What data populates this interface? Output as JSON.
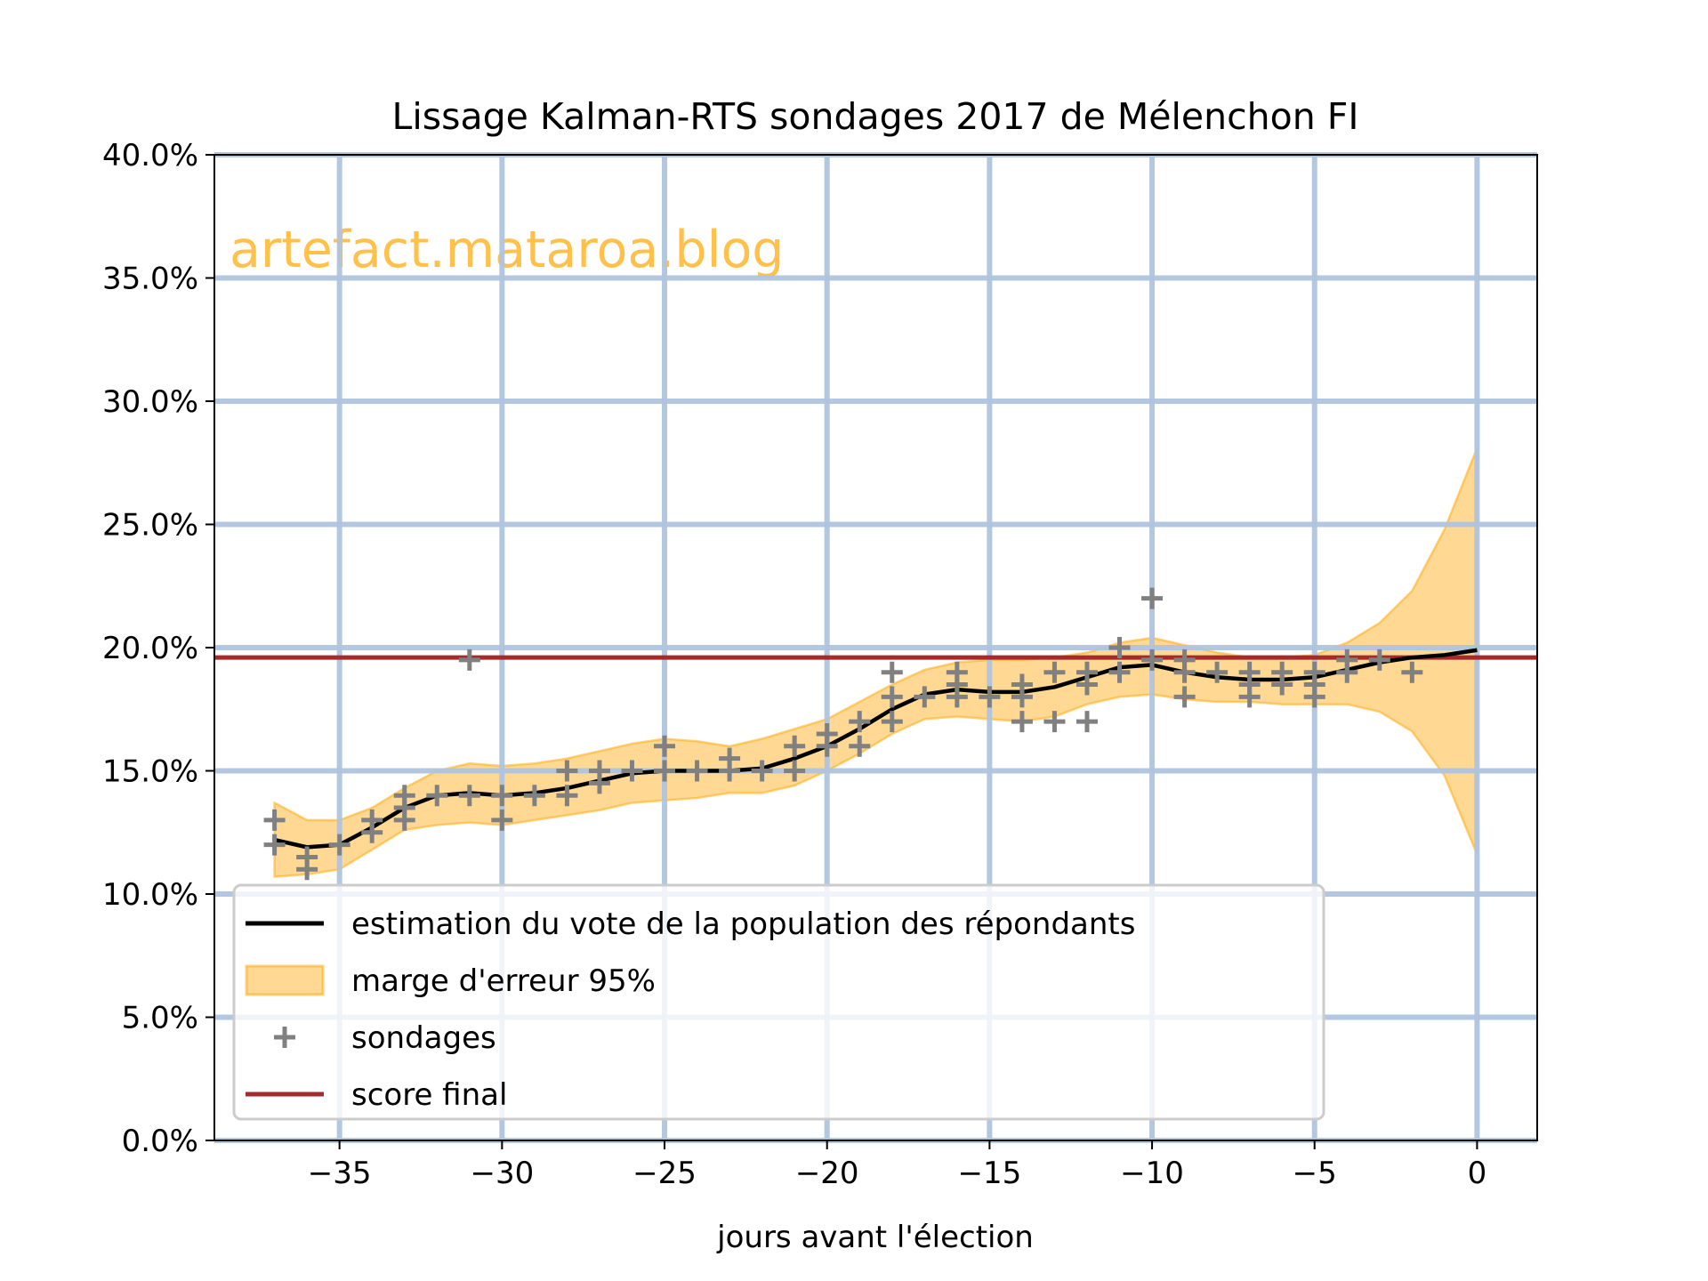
{
  "chart_data": {
    "type": "line",
    "title": "Lissage Kalman-RTS sondages 2017 de Mélenchon FI",
    "xlabel": "jours avant l'élection",
    "ylabel": "",
    "watermark": "artefact.mataroa.blog",
    "xlim": [
      -38.85,
      1.85
    ],
    "ylim": [
      0,
      40
    ],
    "grid": true,
    "legend_placement": "lower-left",
    "x_ticks": [
      -35,
      -30,
      -25,
      -20,
      -15,
      -10,
      -5,
      0
    ],
    "x_tick_labels": [
      "−35",
      "−30",
      "−25",
      "−20",
      "−15",
      "−10",
      "−5",
      "0"
    ],
    "y_ticks": [
      0,
      5,
      10,
      15,
      20,
      25,
      30,
      35,
      40
    ],
    "y_tick_labels": [
      "0.0%",
      "5.0%",
      "10.0%",
      "15.0%",
      "20.0%",
      "25.0%",
      "30.0%",
      "35.0%",
      "40.0%"
    ],
    "colors": {
      "estimate": "#000000",
      "band_fill": "#ffa500",
      "band_edge": "#ffa500",
      "polls": "#808080",
      "final": "#a52a2a",
      "grid": "#b0c4de",
      "watermark": "#ffa500"
    },
    "legend": [
      {
        "label": "estimation du vote de la population des répondants",
        "kind": "line"
      },
      {
        "label": "marge d'erreur 95%",
        "kind": "band"
      },
      {
        "label": "sondages",
        "kind": "marker"
      },
      {
        "label": "score final",
        "kind": "final"
      }
    ],
    "estimate": {
      "x": [
        -37,
        -36,
        -35,
        -34,
        -33,
        -32,
        -31,
        -30,
        -29,
        -28,
        -27,
        -26,
        -25,
        -24,
        -23,
        -22,
        -21,
        -20,
        -19,
        -18,
        -17,
        -16,
        -15,
        -14,
        -13,
        -12,
        -11,
        -10,
        -9,
        -8,
        -7,
        -6,
        -5,
        -4,
        -3,
        -2,
        -1,
        0
      ],
      "y": [
        12.2,
        11.9,
        12.0,
        12.7,
        13.5,
        14.0,
        14.1,
        14.0,
        14.1,
        14.3,
        14.6,
        14.9,
        15.0,
        15.0,
        15.0,
        15.1,
        15.5,
        16.0,
        16.7,
        17.5,
        18.1,
        18.3,
        18.2,
        18.2,
        18.4,
        18.8,
        19.2,
        19.3,
        19.0,
        18.8,
        18.7,
        18.7,
        18.8,
        19.1,
        19.4,
        19.6,
        19.7,
        19.9
      ],
      "upper": [
        13.7,
        13.0,
        13.0,
        13.5,
        14.3,
        15.0,
        15.3,
        15.2,
        15.3,
        15.5,
        15.8,
        16.1,
        16.3,
        16.2,
        16.0,
        16.3,
        16.7,
        17.1,
        17.8,
        18.5,
        19.1,
        19.4,
        19.5,
        19.5,
        19.6,
        19.8,
        20.2,
        20.4,
        20.1,
        19.8,
        19.6,
        19.6,
        19.7,
        20.2,
        21.0,
        22.3,
        24.8,
        28.1
      ],
      "lower": [
        10.7,
        10.8,
        11.0,
        11.8,
        12.6,
        12.8,
        12.9,
        12.8,
        13.0,
        13.2,
        13.4,
        13.7,
        13.8,
        13.9,
        14.1,
        14.1,
        14.4,
        15.0,
        15.7,
        16.5,
        17.1,
        17.2,
        17.1,
        17.0,
        17.2,
        17.7,
        18.0,
        18.1,
        17.9,
        17.8,
        17.8,
        17.7,
        17.7,
        17.7,
        17.4,
        16.6,
        14.8,
        11.6
      ]
    },
    "polls": [
      [
        -37,
        13
      ],
      [
        -37,
        12
      ],
      [
        -36,
        11.5
      ],
      [
        -36,
        11
      ],
      [
        -35,
        12
      ],
      [
        -34,
        13
      ],
      [
        -34,
        12.5
      ],
      [
        -33,
        14
      ],
      [
        -33,
        13.5
      ],
      [
        -33,
        13
      ],
      [
        -32,
        14
      ],
      [
        -31,
        19.5
      ],
      [
        -31,
        14
      ],
      [
        -30,
        14
      ],
      [
        -30,
        13
      ],
      [
        -29,
        14
      ],
      [
        -28,
        15
      ],
      [
        -28,
        14
      ],
      [
        -27,
        15
      ],
      [
        -27,
        14.5
      ],
      [
        -26,
        15
      ],
      [
        -25,
        16
      ],
      [
        -25,
        15
      ],
      [
        -24,
        15
      ],
      [
        -23,
        15.5
      ],
      [
        -23,
        15
      ],
      [
        -22,
        15
      ],
      [
        -21,
        16
      ],
      [
        -21,
        15
      ],
      [
        -20,
        16.5
      ],
      [
        -20,
        16
      ],
      [
        -19,
        17
      ],
      [
        -19,
        16
      ],
      [
        -18,
        19
      ],
      [
        -18,
        18
      ],
      [
        -18,
        17
      ],
      [
        -17,
        18
      ],
      [
        -16,
        19
      ],
      [
        -16,
        18.5
      ],
      [
        -16,
        18
      ],
      [
        -15,
        18
      ],
      [
        -14,
        18.5
      ],
      [
        -14,
        18
      ],
      [
        -14,
        17
      ],
      [
        -13,
        19
      ],
      [
        -13,
        17
      ],
      [
        -12,
        19
      ],
      [
        -12,
        18.5
      ],
      [
        -12,
        17
      ],
      [
        -11,
        20
      ],
      [
        -11,
        19
      ],
      [
        -10,
        22
      ],
      [
        -10,
        19.5
      ],
      [
        -9,
        19.5
      ],
      [
        -9,
        19
      ],
      [
        -9,
        18
      ],
      [
        -8,
        19
      ],
      [
        -7,
        19
      ],
      [
        -7,
        18.5
      ],
      [
        -7,
        18
      ],
      [
        -6,
        19
      ],
      [
        -6,
        18.5
      ],
      [
        -5,
        19
      ],
      [
        -5,
        18.5
      ],
      [
        -5,
        18
      ],
      [
        -4,
        19.5
      ],
      [
        -4,
        19
      ],
      [
        -3,
        19.5
      ],
      [
        -2,
        19
      ]
    ],
    "final_score": 19.6
  }
}
